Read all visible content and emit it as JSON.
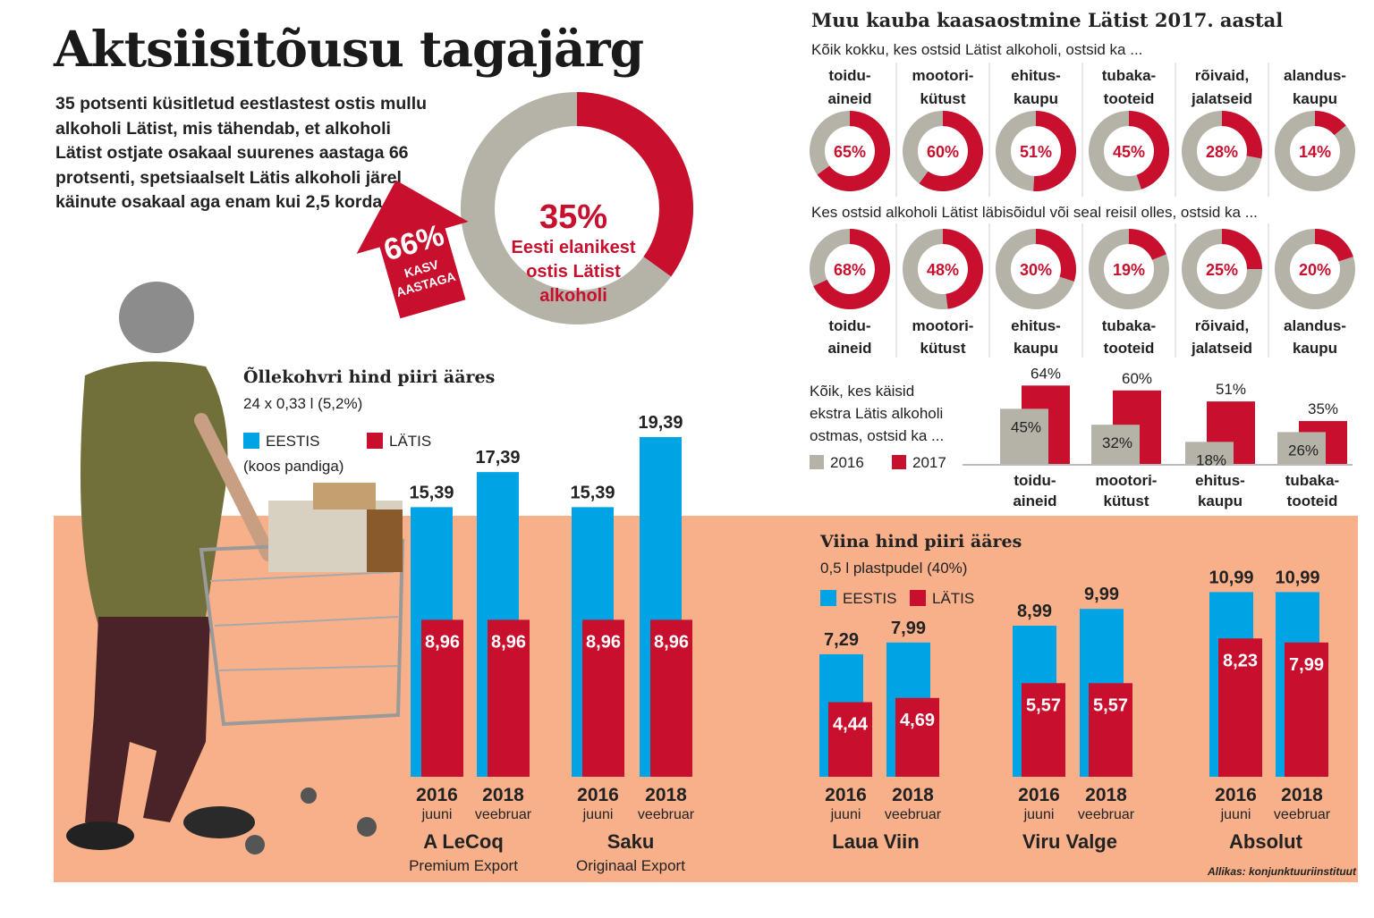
{
  "header": {
    "title": "Aktsiisitõusu tagajärg",
    "intro": "35 potsenti küsitletud eestlastest ostis mullu alkoholi Lätist, mis tähendab, et alkoholi Lätist ostjate osakaal suurenes aastaga 66 protsenti, spetsiaalselt Lätis alkoholi järel käinute osakaal aga enam kui 2,5 korda."
  },
  "big_donut": {
    "value_label": "35%",
    "caption": [
      "Eesti elanikest",
      "ostis Lätist",
      "alkoholi"
    ],
    "arrow_value": "66%",
    "arrow_caption": [
      "KASV",
      "AASTAGA"
    ],
    "colors": {
      "red": "#c8102e",
      "grey": "#b5b3a7"
    }
  },
  "source": "Allikas: konjunktuuriinstituut",
  "chart_data": [
    {
      "type": "pie",
      "title": "",
      "values": [
        35,
        65
      ],
      "labels": [
        "35%",
        ""
      ]
    },
    {
      "type": "pie",
      "title": "Muu kauba kaasaostmine Lätist 2017. aastal",
      "subtitle": "Kõik kokku, kes ostsid Lätist alkoholi, ostsid ka ...",
      "categories": [
        [
          "toidu-",
          "aineid"
        ],
        [
          "mootori-",
          "kütust"
        ],
        [
          "ehitus-",
          "kaupu"
        ],
        [
          "tubaka-",
          "tooteid"
        ],
        [
          "rõivaid,",
          "jalatseid"
        ],
        [
          "alandus-",
          "kaupu"
        ]
      ],
      "values": [
        65,
        60,
        51,
        45,
        28,
        14
      ],
      "labels": [
        "65%",
        "60%",
        "51%",
        "45%",
        "28%",
        "14%"
      ]
    },
    {
      "type": "pie",
      "subtitle": "Kes ostsid alkoholi Lätist läbisõidul või seal reisil olles, ostsid ka ...",
      "categories": [
        [
          "toidu-",
          "aineid"
        ],
        [
          "mootori-",
          "kütust"
        ],
        [
          "ehitus-",
          "kaupu"
        ],
        [
          "tubaka-",
          "tooteid"
        ],
        [
          "rõivaid,",
          "jalatseid"
        ],
        [
          "alandus-",
          "kaupu"
        ]
      ],
      "values": [
        68,
        48,
        30,
        19,
        25,
        20
      ],
      "labels": [
        "68%",
        "48%",
        "30%",
        "19%",
        "25%",
        "20%"
      ]
    },
    {
      "type": "bar",
      "subtitle": [
        "Kõik, kes käisid",
        "ekstra Lätis alkoholi",
        "ostmas, ostsid ka ..."
      ],
      "categories": [
        [
          "toidu-",
          "aineid"
        ],
        [
          "mootori-",
          "kütust"
        ],
        [
          "ehitus-",
          "kaupu"
        ],
        [
          "tubaka-",
          "tooteid"
        ]
      ],
      "series": [
        {
          "name": "2016",
          "values": [
            45,
            32,
            18,
            26
          ],
          "labels": [
            "45%",
            "32%",
            "18%",
            "26%"
          ],
          "color": "#b5b3a7"
        },
        {
          "name": "2017",
          "values": [
            64,
            60,
            51,
            35
          ],
          "labels": [
            "64%",
            "60%",
            "51%",
            "35%"
          ],
          "color": "#c8102e"
        }
      ]
    },
    {
      "type": "bar",
      "title": "Õllekohvri hind piiri ääres",
      "subtitle": "24 x 0,33 l (5,2%)",
      "legend_note": "(koos pandiga)",
      "groups": [
        {
          "name": "A LeCoq",
          "sub": "Premium Export"
        },
        {
          "name": "Saku",
          "sub": "Originaal Export"
        }
      ],
      "categories": [
        [
          "2016",
          "juuni"
        ],
        [
          "2018",
          "veebruar"
        ],
        [
          "2016",
          "juuni"
        ],
        [
          "2018",
          "veebruar"
        ]
      ],
      "series": [
        {
          "name": "EESTIS",
          "values": [
            15.39,
            17.39,
            15.39,
            19.39
          ],
          "labels": [
            "15,39",
            "17,39",
            "15,39",
            "19,39"
          ],
          "color": "#00a3e4"
        },
        {
          "name": "LÄTIS",
          "values": [
            8.96,
            8.96,
            8.96,
            8.96
          ],
          "labels": [
            "8,96",
            "8,96",
            "8,96",
            "8,96"
          ],
          "color": "#c8102e"
        }
      ]
    },
    {
      "type": "bar",
      "title": "Viina hind piiri ääres",
      "subtitle": "0,5 l plastpudel (40%)",
      "groups": [
        {
          "name": "Laua Viin",
          "sub": ""
        },
        {
          "name": "Viru Valge",
          "sub": ""
        },
        {
          "name": "Absolut",
          "sub": ""
        }
      ],
      "categories": [
        [
          "2016",
          "juuni"
        ],
        [
          "2018",
          "veebruar"
        ],
        [
          "2016",
          "juuni"
        ],
        [
          "2018",
          "veebruar"
        ],
        [
          "2016",
          "juuni"
        ],
        [
          "2018",
          "veebruar"
        ]
      ],
      "series": [
        {
          "name": "EESTIS",
          "values": [
            7.29,
            7.99,
            8.99,
            9.99,
            10.99,
            10.99
          ],
          "labels": [
            "7,29",
            "7,99",
            "8,99",
            "9,99",
            "10,99",
            "10,99"
          ],
          "color": "#00a3e4"
        },
        {
          "name": "LÄTIS",
          "values": [
            4.44,
            4.69,
            5.57,
            5.57,
            8.23,
            7.99
          ],
          "labels": [
            "4,44",
            "4,69",
            "5,57",
            "5,57",
            "8,23",
            "7,99"
          ],
          "color": "#c8102e"
        }
      ]
    }
  ]
}
